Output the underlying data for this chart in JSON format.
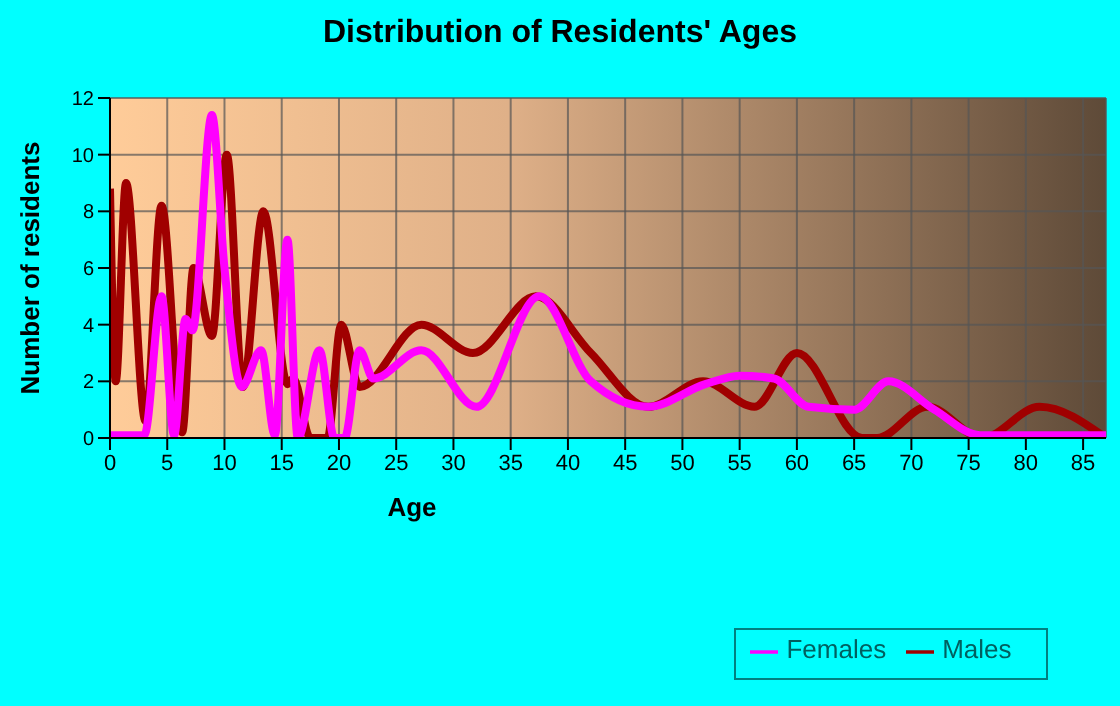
{
  "chart_data": {
    "type": "line",
    "title": "Distribution of Residents' Ages",
    "xlabel": "Age",
    "ylabel": "Number of residents",
    "xlim": [
      0,
      87
    ],
    "xticks": [
      0,
      5,
      10,
      15,
      20,
      25,
      30,
      35,
      40,
      45,
      50,
      55,
      60,
      65,
      70,
      75,
      80,
      85
    ],
    "ylim": [
      0,
      12
    ],
    "yticks": [
      0,
      2,
      4,
      6,
      8,
      10,
      12
    ],
    "grid": true,
    "legend": "bottom right",
    "marker": "none",
    "line_style": "solid",
    "series": [
      {
        "name": "Males",
        "color": "#a00000",
        "x": [
          0,
          0.5,
          1.4,
          3.1,
          4.5,
          6.3,
          7.3,
          8.9,
          10.2,
          11.6,
          13.4,
          15.5,
          16,
          17.5,
          19,
          20.2,
          21.8,
          27.2,
          31.7,
          37.2,
          42,
          47,
          51.8,
          56.3,
          60,
          65.7,
          67,
          71.4,
          76.2,
          81.2,
          87
        ],
        "values": [
          8.8,
          2,
          9,
          0.6,
          8.2,
          0.2,
          6,
          3.6,
          10,
          1.8,
          8,
          1.9,
          2.1,
          0,
          0,
          4,
          1.8,
          4,
          3,
          5,
          3,
          1.1,
          2,
          1.1,
          3,
          0,
          0,
          1.1,
          0,
          1.1,
          0
        ]
      },
      {
        "name": "Females",
        "color": "#ff00ff",
        "x": [
          0,
          3,
          4.5,
          5.6,
          6.6,
          7.2,
          8.9,
          10,
          11.5,
          13.2,
          14.4,
          15.5,
          16.4,
          18.3,
          19.6,
          20.5,
          21.8,
          23,
          27.2,
          32,
          37.5,
          42,
          47,
          52,
          55,
          58,
          61,
          65,
          68,
          72,
          76,
          80,
          87
        ],
        "values": [
          0.1,
          0.1,
          5,
          0.1,
          4.2,
          3.8,
          11.4,
          6,
          1.8,
          3.1,
          0.1,
          7,
          0,
          3.1,
          0,
          0,
          3.1,
          2.1,
          3.1,
          1.1,
          5,
          2,
          1.1,
          1.9,
          2.2,
          2.1,
          1.1,
          1,
          2,
          1,
          0.1,
          0.1,
          0.1
        ]
      }
    ]
  }
}
